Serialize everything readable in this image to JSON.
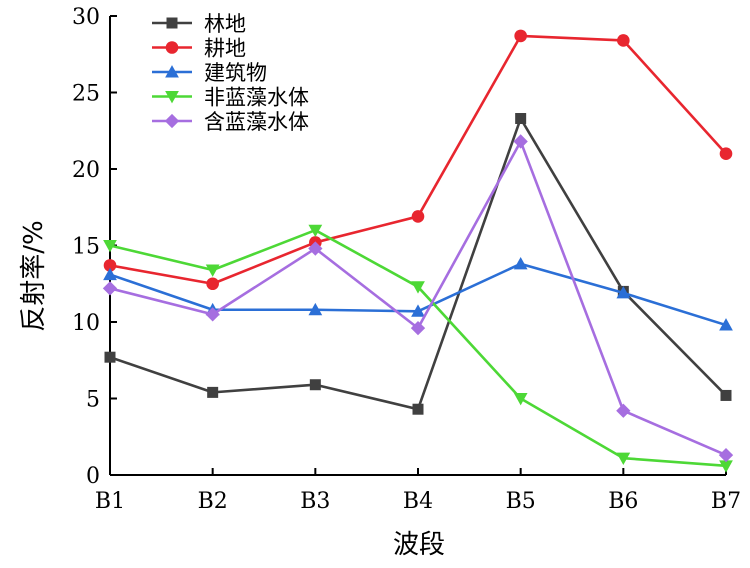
{
  "chart_data": {
    "type": "line",
    "categories": [
      "B1",
      "B2",
      "B3",
      "B4",
      "B5",
      "B6",
      "B7"
    ],
    "xlabel": "波段",
    "ylabel": "反射率/%",
    "ylim": [
      0,
      30
    ],
    "yticks": [
      "0",
      "5",
      "10",
      "15",
      "20",
      "25",
      "30"
    ],
    "grid": false,
    "legend_position": "top-left",
    "series": [
      {
        "name": "林地",
        "color": "#404040",
        "marker": "square",
        "values": [
          7.7,
          5.4,
          5.9,
          4.3,
          23.3,
          12.0,
          5.2
        ]
      },
      {
        "name": "耕地",
        "color": "#e8262f",
        "marker": "circle",
        "values": [
          13.7,
          12.5,
          15.2,
          16.9,
          28.7,
          28.4,
          21.0
        ]
      },
      {
        "name": "建筑物",
        "color": "#2b6fd6",
        "marker": "triangle-up",
        "values": [
          13.1,
          10.8,
          10.8,
          10.7,
          13.8,
          11.9,
          9.8
        ]
      },
      {
        "name": "非蓝藻水体",
        "color": "#4dd836",
        "marker": "triangle-down",
        "values": [
          15.0,
          13.4,
          16.0,
          12.3,
          5.0,
          1.1,
          0.6
        ]
      },
      {
        "name": "含蓝藻水体",
        "color": "#a66ee0",
        "marker": "diamond",
        "values": [
          12.2,
          10.5,
          14.8,
          9.6,
          21.8,
          4.2,
          1.3
        ]
      }
    ]
  }
}
